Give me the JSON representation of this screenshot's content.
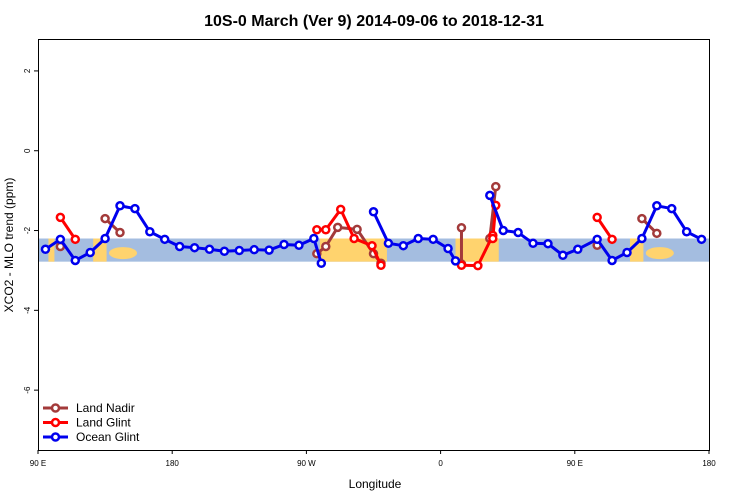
{
  "chart_data": {
    "type": "line",
    "title": "10S-0 March (Ver 9)   2014-09-06 to 2018-12-31",
    "xlabel": "Longitude",
    "ylabel": "XCO2 - MLO trend (ppm)",
    "xlim": [
      90,
      540
    ],
    "ylim": [
      -7.5,
      2.8
    ],
    "x_ticks": [
      {
        "value": 90,
        "label": "90 E"
      },
      {
        "value": 180,
        "label": "180"
      },
      {
        "value": 270,
        "label": "90 W"
      },
      {
        "value": 360,
        "label": "0"
      },
      {
        "value": 450,
        "label": "90 E"
      },
      {
        "value": 540,
        "label": "180"
      }
    ],
    "y_ticks": [
      {
        "value": 2,
        "label": "2"
      },
      {
        "value": 0,
        "label": "0"
      },
      {
        "value": -2,
        "label": "-2"
      },
      {
        "value": -4,
        "label": "-4"
      },
      {
        "value": -6,
        "label": "-6"
      }
    ],
    "legend_position": "bottom-left",
    "map_band": {
      "y_top": -2.2,
      "y_bottom": -2.78,
      "ocean_color": "#a4bde0",
      "land_color": "#ffd36e"
    },
    "series": [
      {
        "name": "Land Nadir",
        "color": "#a33a3a",
        "segments": [
          [
            [
              105,
              -2.4
            ]
          ],
          [
            [
              135,
              -1.7
            ],
            [
              145,
              -2.05
            ]
          ],
          [
            [
              277,
              -2.58
            ],
            [
              283,
              -2.4
            ],
            [
              291,
              -1.92
            ],
            [
              304,
              -1.97
            ],
            [
              315,
              -2.58
            ],
            [
              320,
              -2.82
            ]
          ],
          [
            [
              374,
              -1.93
            ],
            [
              374,
              -2.84
            ]
          ],
          [
            [
              393,
              -2.2
            ],
            [
              397,
              -0.9
            ]
          ],
          [
            [
              465,
              -2.37
            ]
          ],
          [
            [
              495,
              -1.7
            ],
            [
              505,
              -2.07
            ]
          ]
        ]
      },
      {
        "name": "Land Glint",
        "color": "#ff0000",
        "segments": [
          [
            [
              105,
              -1.67
            ],
            [
              115,
              -2.22
            ]
          ],
          [
            [
              277,
              -1.98
            ],
            [
              283,
              -1.98
            ],
            [
              293,
              -1.47
            ],
            [
              302,
              -2.2
            ],
            [
              314,
              -2.38
            ],
            [
              320,
              -2.87
            ]
          ],
          [
            [
              374,
              -2.87
            ],
            [
              385,
              -2.88
            ],
            [
              395,
              -2.12
            ],
            [
              395,
              -2.2
            ],
            [
              397,
              -1.37
            ]
          ],
          [
            [
              465,
              -1.67
            ],
            [
              475,
              -2.22
            ]
          ]
        ]
      },
      {
        "name": "Ocean Glint",
        "color": "#0000ee",
        "segments": [
          [
            [
              95,
              -2.47
            ],
            [
              105,
              -2.22
            ],
            [
              115,
              -2.75
            ],
            [
              125,
              -2.55
            ],
            [
              135,
              -2.2
            ],
            [
              145,
              -1.38
            ],
            [
              155,
              -1.45
            ],
            [
              165,
              -2.03
            ],
            [
              175,
              -2.22
            ],
            [
              185,
              -2.4
            ],
            [
              195,
              -2.43
            ],
            [
              205,
              -2.47
            ],
            [
              215,
              -2.52
            ],
            [
              225,
              -2.5
            ],
            [
              235,
              -2.48
            ],
            [
              245,
              -2.49
            ],
            [
              255,
              -2.35
            ],
            [
              265,
              -2.37
            ],
            [
              275,
              -2.2
            ],
            [
              280,
              -2.82
            ]
          ],
          [
            [
              315,
              -1.53
            ],
            [
              325,
              -2.32
            ],
            [
              335,
              -2.38
            ],
            [
              345,
              -2.2
            ],
            [
              355,
              -2.22
            ],
            [
              365,
              -2.45
            ],
            [
              370,
              -2.76
            ]
          ],
          [
            [
              393,
              -1.12
            ],
            [
              402,
              -2.0
            ],
            [
              412,
              -2.05
            ],
            [
              422,
              -2.32
            ],
            [
              432,
              -2.33
            ],
            [
              442,
              -2.62
            ],
            [
              452,
              -2.47
            ],
            [
              465,
              -2.22
            ],
            [
              475,
              -2.75
            ],
            [
              485,
              -2.55
            ],
            [
              495,
              -2.2
            ],
            [
              505,
              -1.38
            ],
            [
              515,
              -1.45
            ],
            [
              525,
              -2.03
            ],
            [
              535,
              -2.22
            ]
          ]
        ]
      }
    ]
  }
}
